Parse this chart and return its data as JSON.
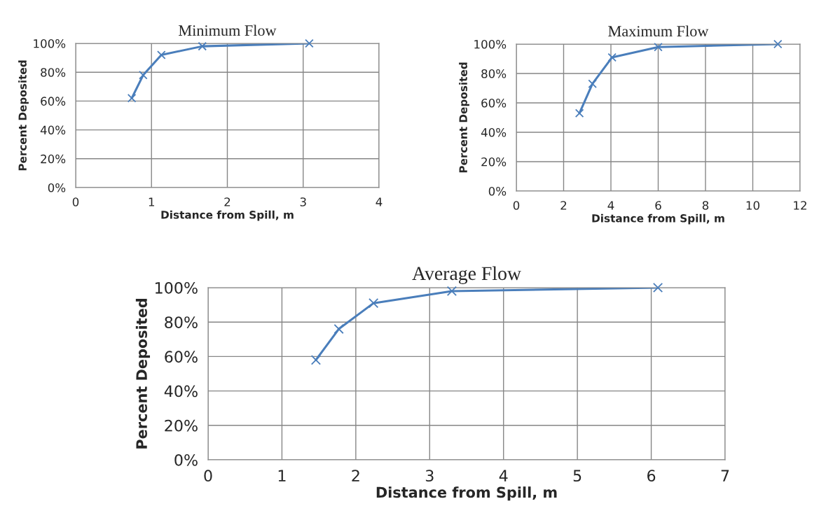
{
  "chart_data": [
    {
      "type": "line",
      "title": "Minimum Flow",
      "xlabel": "Distance from Spill, m",
      "ylabel": "Percent Deposited",
      "x": [
        0.74,
        0.89,
        1.13,
        1.67,
        3.08
      ],
      "series": [
        {
          "color": "#4a7ebb",
          "values": [
            62,
            78,
            92,
            98,
            100
          ]
        }
      ],
      "xlim": [
        0,
        4
      ],
      "xticks": [
        0,
        1,
        2,
        3,
        4
      ],
      "ylim": [
        0,
        100
      ],
      "yticks": [
        {
          "value": 0,
          "label": "0%"
        },
        {
          "value": 20,
          "label": "20%"
        },
        {
          "value": 40,
          "label": "40%"
        },
        {
          "value": 60,
          "label": "60%"
        },
        {
          "value": 80,
          "label": "80%"
        },
        {
          "value": 100,
          "label": "100%"
        }
      ],
      "grid": true,
      "marker": "cross",
      "line_style": "solid"
    },
    {
      "type": "line",
      "title": "Maximum Flow",
      "xlabel": "Distance from Spill, m",
      "ylabel": "Percent Deposited",
      "x": [
        2.67,
        3.22,
        4.05,
        6.0,
        11.06
      ],
      "series": [
        {
          "color": "#4a7ebb",
          "values": [
            53,
            73,
            91,
            98,
            100
          ]
        }
      ],
      "xlim": [
        0,
        12
      ],
      "xticks": [
        0,
        2,
        4,
        6,
        8,
        10,
        12
      ],
      "ylim": [
        0,
        100
      ],
      "yticks": [
        {
          "value": 0,
          "label": "0%"
        },
        {
          "value": 20,
          "label": "20%"
        },
        {
          "value": 40,
          "label": "40%"
        },
        {
          "value": 60,
          "label": "60%"
        },
        {
          "value": 80,
          "label": "80%"
        },
        {
          "value": 100,
          "label": "100%"
        }
      ],
      "grid": true,
      "marker": "cross",
      "line_style": "solid"
    },
    {
      "type": "line",
      "title": "Average Flow",
      "xlabel": "Distance from Spill, m",
      "ylabel": "Percent Deposited",
      "x": [
        1.46,
        1.77,
        2.24,
        3.3,
        6.09
      ],
      "series": [
        {
          "color": "#4a7ebb",
          "values": [
            58,
            76,
            91,
            98,
            100
          ]
        }
      ],
      "xlim": [
        0,
        7
      ],
      "xticks": [
        0,
        1,
        2,
        3,
        4,
        5,
        6,
        7
      ],
      "ylim": [
        0,
        100
      ],
      "yticks": [
        {
          "value": 0,
          "label": "0%"
        },
        {
          "value": 20,
          "label": "20%"
        },
        {
          "value": 40,
          "label": "40%"
        },
        {
          "value": 60,
          "label": "60%"
        },
        {
          "value": 80,
          "label": "80%"
        },
        {
          "value": 100,
          "label": "100%"
        }
      ],
      "grid": true,
      "marker": "cross",
      "line_style": "solid"
    }
  ]
}
